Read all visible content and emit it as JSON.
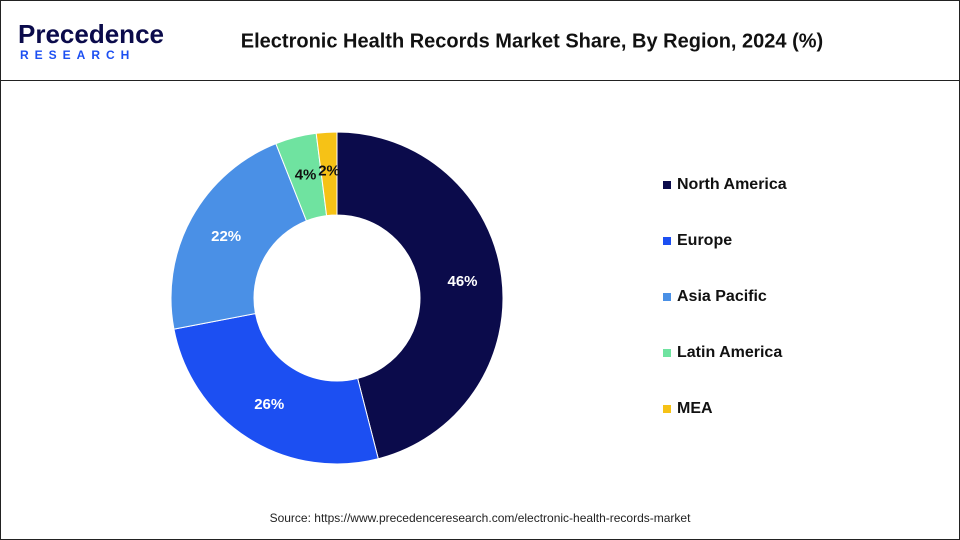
{
  "logo": {
    "name": "Precedence",
    "sub": "RESEARCH"
  },
  "chart_data": {
    "type": "donut",
    "title": "Electronic Health Records Market Share, By Region, 2024 (%)",
    "categories": [
      "North America",
      "Europe",
      "Asia Pacific",
      "Latin America",
      "MEA"
    ],
    "values": [
      46,
      26,
      22,
      4,
      2
    ],
    "value_labels": [
      "46%",
      "26%",
      "22%",
      "4%",
      "2%"
    ],
    "colors": [
      "#0b0b4b",
      "#1c4ff2",
      "#4a90e6",
      "#6fe3a0",
      "#f6c216"
    ],
    "legend": "right",
    "source": "Source: https://www.precedenceresearch.com/electronic-health-records-market"
  }
}
